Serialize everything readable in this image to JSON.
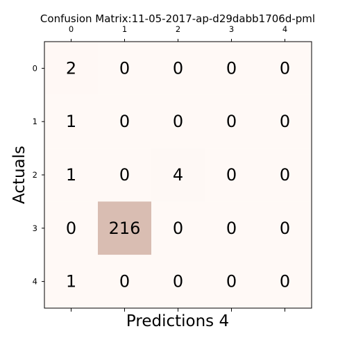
{
  "chart_data": {
    "type": "heatmap",
    "title": "Confusion Matrix:11-05-2017-ap-d29dabb1706d-pml",
    "xlabel": "Predictions 4",
    "ylabel": "Actuals",
    "x_ticks": [
      "0",
      "1",
      "2",
      "3",
      "4"
    ],
    "y_ticks": [
      "0",
      "1",
      "2",
      "3",
      "4"
    ],
    "x_tick_position": "top",
    "matrix": [
      [
        2,
        0,
        0,
        0,
        0
      ],
      [
        1,
        0,
        0,
        0,
        0
      ],
      [
        1,
        0,
        4,
        0,
        0
      ],
      [
        0,
        216,
        0,
        0,
        0
      ],
      [
        1,
        0,
        0,
        0,
        0
      ]
    ],
    "color_low": "#fff9f6",
    "color_high": "#d9bdb2",
    "grid": false
  }
}
